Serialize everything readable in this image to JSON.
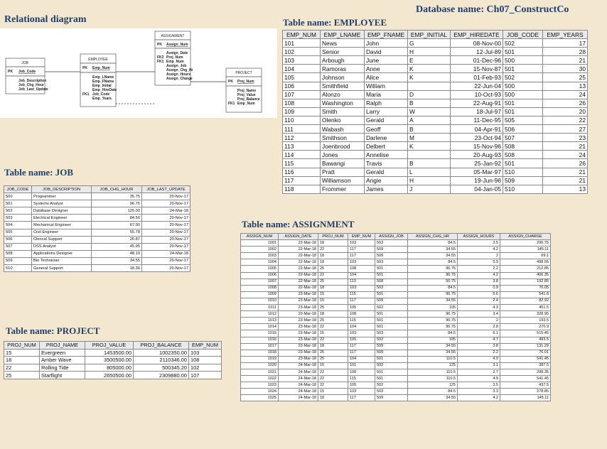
{
  "database_name": "Database name: Ch07_ConstructCo",
  "relational_diagram": {
    "title": "Relational diagram",
    "entities": {
      "job": {
        "name": "JOB",
        "pk": [
          {
            "label": "PK",
            "field": "Job_Code"
          }
        ],
        "fields": [
          "Job_Description",
          "Job_Chg_Hour",
          "Job_Last_Update"
        ]
      },
      "employee": {
        "name": "EMPLOYEE",
        "pk": [
          {
            "label": "PK",
            "field": "Emp_Num"
          }
        ],
        "fields": [
          "Emp_LName",
          "Emp_FName",
          "Emp_Initial",
          "Emp_HireDate",
          "Job_Code",
          "Emp_Years"
        ],
        "fk_label": "FK1",
        "fk_field": "Job_Code"
      },
      "assignment": {
        "name": "ASSIGNMENT",
        "pk": [
          {
            "label": "PK",
            "field": "Assign_Num"
          }
        ],
        "fields": [
          "Assign_Date",
          "Proj_Num",
          "Emp_Num",
          "Assign_Job",
          "Assign_Chg_Hr",
          "Assign_Hours",
          "Assign_Charge"
        ],
        "fk_labels": [
          "FK2",
          "FK1"
        ]
      },
      "project": {
        "name": "PROJECT",
        "pk": [
          {
            "label": "PK",
            "field": "Proj_Num"
          }
        ],
        "fields": [
          "Proj_Name",
          "Proj_Value",
          "Proj_Balance",
          "Emp_Num"
        ],
        "fk_label": "FK1"
      }
    }
  },
  "employee_table": {
    "title": "Table name: EMPLOYEE",
    "columns": [
      "EMP_NUM",
      "EMP_LNAME",
      "EMP_FNAME",
      "EMP_INITIAL",
      "EMP_HIREDATE",
      "JOB_CODE",
      "EMP_YEARS"
    ],
    "rows": [
      [
        "101",
        "News",
        "John",
        "G",
        "08-Nov-00",
        "502",
        "17"
      ],
      [
        "102",
        "Senior",
        "David",
        "H",
        "12-Jul-89",
        "501",
        "28"
      ],
      [
        "103",
        "Arbough",
        "June",
        "E",
        "01-Dec-96",
        "500",
        "21"
      ],
      [
        "104",
        "Ramoras",
        "Anne",
        "K",
        "15-Nov-87",
        "501",
        "30"
      ],
      [
        "105",
        "Johnson",
        "Alice",
        "K",
        "01-Feb-93",
        "502",
        "25"
      ],
      [
        "106",
        "Smithfield",
        "William",
        "",
        "22-Jun-04",
        "500",
        "13"
      ],
      [
        "107",
        "Alonzo",
        "Maria",
        "D",
        "10-Oct-93",
        "500",
        "24"
      ],
      [
        "108",
        "Washington",
        "Ralph",
        "B",
        "22-Aug-91",
        "501",
        "26"
      ],
      [
        "109",
        "Smith",
        "Larry",
        "W",
        "18-Jul-97",
        "501",
        "20"
      ],
      [
        "110",
        "Olenko",
        "Gerald",
        "A",
        "11-Dec-95",
        "505",
        "22"
      ],
      [
        "111",
        "Wabash",
        "Geoff",
        "B",
        "04-Apr-91",
        "506",
        "27"
      ],
      [
        "112",
        "Smithson",
        "Darlene",
        "M",
        "23-Oct-94",
        "507",
        "23"
      ],
      [
        "113",
        "Joenbrood",
        "Delbert",
        "K",
        "15-Nov-96",
        "508",
        "21"
      ],
      [
        "114",
        "Jones",
        "Annelise",
        "",
        "20-Aug-93",
        "508",
        "24"
      ],
      [
        "115",
        "Bawangi",
        "Travis",
        "B",
        "25-Jan-92",
        "501",
        "26"
      ],
      [
        "116",
        "Pratt",
        "Gerald",
        "L",
        "05-Mar-97",
        "510",
        "21"
      ],
      [
        "117",
        "Williamson",
        "Angie",
        "H",
        "19-Jun-96",
        "509",
        "21"
      ],
      [
        "118",
        "Frommer",
        "James",
        "J",
        "04-Jan-05",
        "510",
        "13"
      ]
    ]
  },
  "job_table": {
    "title": "Table name: JOB",
    "columns": [
      "JOB_CODE",
      "JOB_DESCRIPTION",
      "JOB_CHG_HOUR",
      "JOB_LAST_UPDATE"
    ],
    "rows": [
      [
        "500",
        "Programmer",
        "35.75",
        "20-Nov-17"
      ],
      [
        "501",
        "Systems Analyst",
        "96.75",
        "20-Nov-17"
      ],
      [
        "502",
        "Database Designer",
        "125.00",
        "24-Mar-18"
      ],
      [
        "503",
        "Electrical Engineer",
        "84.50",
        "20-Nov-17"
      ],
      [
        "504",
        "Mechanical Engineer",
        "67.90",
        "20-Nov-17"
      ],
      [
        "505",
        "Civil Engineer",
        "55.78",
        "20-Nov-17"
      ],
      [
        "506",
        "Clerical Support",
        "26.87",
        "20-Nov-17"
      ],
      [
        "507",
        "DSS Analyst",
        "45.95",
        "20-Nov-17"
      ],
      [
        "508",
        "Applications Designer",
        "48.10",
        "24-Mar-18"
      ],
      [
        "509",
        "Bio Technician",
        "34.55",
        "20-Nov-17"
      ],
      [
        "510",
        "General Support",
        "18.36",
        "20-Nov-17"
      ]
    ]
  },
  "project_table": {
    "title": "Table name: PROJECT",
    "columns": [
      "PROJ_NUM",
      "PROJ_NAME",
      "PROJ_VALUE",
      "PROJ_BALANCE",
      "EMP_NUM"
    ],
    "rows": [
      [
        "15",
        "Evergreen",
        "1453500.00",
        "1002350.00",
        "103"
      ],
      [
        "18",
        "Amber Wave",
        "3500500.00",
        "2110346.00",
        "108"
      ],
      [
        "22",
        "Rolling Tide",
        "805000.00",
        "500345.20",
        "102"
      ],
      [
        "25",
        "Starflight",
        "2650500.00",
        "2309880.00",
        "107"
      ]
    ]
  },
  "assignment_table": {
    "title": "Table name: ASSIGNMENT",
    "columns": [
      "ASSIGN_NUM",
      "ASSIGN_DATE",
      "PROJ_NUM",
      "EMP_NUM",
      "ASSIGN_JOB",
      "ASSIGN_CHG_HR",
      "ASSIGN_HOURS",
      "ASSIGN_CHARGE"
    ],
    "rows": [
      [
        "1001",
        "22-Mar-18",
        "18",
        "103",
        "503",
        "84.5",
        "3.5",
        "295.75"
      ],
      [
        "1002",
        "22-Mar-18",
        "22",
        "117",
        "509",
        "34.55",
        "4.2",
        "145.11"
      ],
      [
        "1003",
        "22-Mar-18",
        "18",
        "117",
        "509",
        "34.55",
        "2",
        "69.1"
      ],
      [
        "1004",
        "22-Mar-18",
        "18",
        "103",
        "503",
        "84.5",
        "5.9",
        "498.55"
      ],
      [
        "1005",
        "22-Mar-18",
        "25",
        "108",
        "501",
        "96.75",
        "2.2",
        "212.85"
      ],
      [
        "1006",
        "22-Mar-18",
        "22",
        "104",
        "501",
        "96.75",
        "4.2",
        "406.35"
      ],
      [
        "1007",
        "22-Mar-18",
        "25",
        "113",
        "508",
        "50.75",
        "3.8",
        "192.85"
      ],
      [
        "1008",
        "22-Mar-18",
        "18",
        "103",
        "503",
        "84.5",
        "0.9",
        "76.05"
      ],
      [
        "1009",
        "23-Mar-18",
        "15",
        "115",
        "501",
        "96.75",
        "5.6",
        "541.8"
      ],
      [
        "1010",
        "23-Mar-18",
        "15",
        "117",
        "509",
        "34.55",
        "2.4",
        "82.92"
      ],
      [
        "1011",
        "23-Mar-18",
        "25",
        "105",
        "502",
        "105",
        "4.3",
        "451.5"
      ],
      [
        "1012",
        "23-Mar-18",
        "18",
        "108",
        "501",
        "96.75",
        "3.4",
        "328.95"
      ],
      [
        "1013",
        "23-Mar-18",
        "25",
        "115",
        "501",
        "96.75",
        "2",
        "193.5"
      ],
      [
        "1014",
        "23-Mar-18",
        "22",
        "104",
        "501",
        "96.75",
        "2.8",
        "270.9"
      ],
      [
        "1015",
        "23-Mar-18",
        "15",
        "103",
        "503",
        "84.5",
        "6.1",
        "515.45"
      ],
      [
        "1016",
        "23-Mar-18",
        "22",
        "105",
        "502",
        "105",
        "4.7",
        "493.5"
      ],
      [
        "1017",
        "23-Mar-18",
        "18",
        "117",
        "509",
        "34.55",
        "3.8",
        "131.29"
      ],
      [
        "1018",
        "23-Mar-18",
        "25",
        "117",
        "509",
        "34.55",
        "2.2",
        "76.01"
      ],
      [
        "1019",
        "23-Mar-18",
        "25",
        "104",
        "501",
        "110.5",
        "4.9",
        "541.45"
      ],
      [
        "1020",
        "24-Mar-18",
        "15",
        "101",
        "502",
        "125",
        "3.1",
        "387.5"
      ],
      [
        "1021",
        "24-Mar-18",
        "22",
        "108",
        "501",
        "110.5",
        "2.7",
        "298.35"
      ],
      [
        "1022",
        "24-Mar-18",
        "22",
        "115",
        "501",
        "110.5",
        "4.9",
        "541.45"
      ],
      [
        "1023",
        "24-Mar-18",
        "22",
        "105",
        "502",
        "125",
        "3.5",
        "437.5"
      ],
      [
        "1024",
        "24-Mar-18",
        "15",
        "103",
        "503",
        "84.5",
        "3.3",
        "278.85"
      ],
      [
        "1025",
        "24-Mar-18",
        "18",
        "117",
        "509",
        "34.55",
        "4.2",
        "145.11"
      ]
    ]
  }
}
